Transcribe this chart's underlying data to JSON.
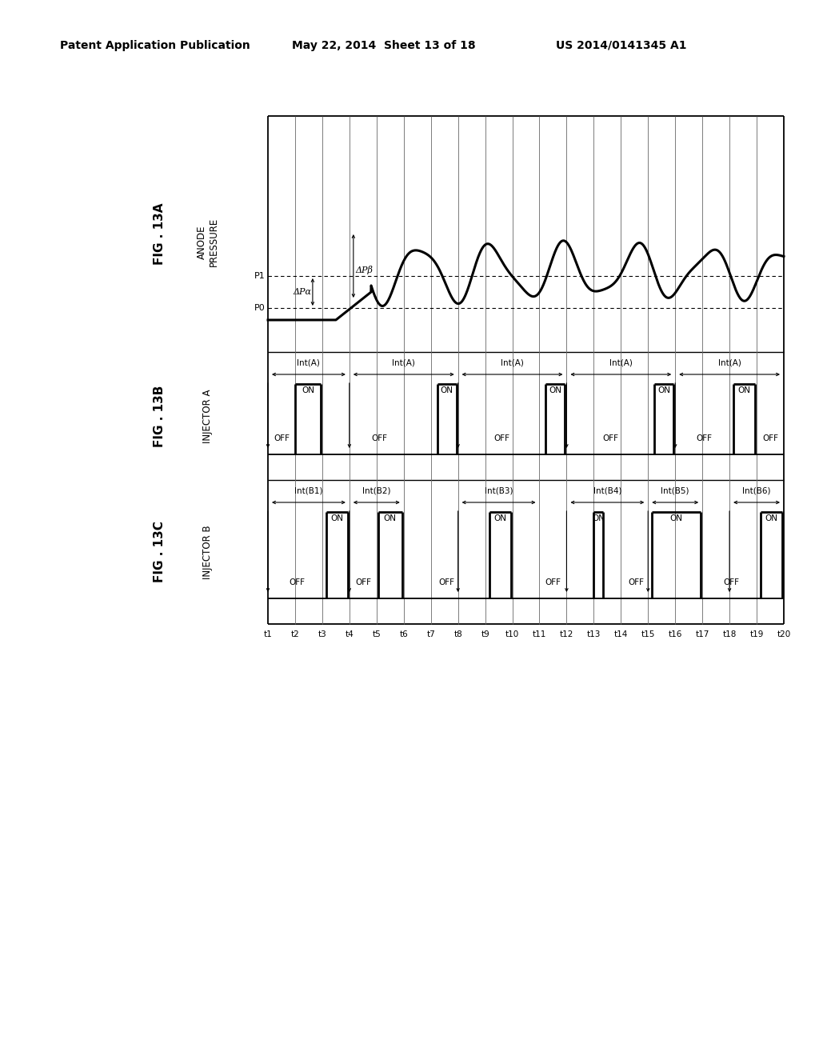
{
  "header_left": "Patent Application Publication",
  "header_mid": "May 22, 2014  Sheet 13 of 18",
  "header_right": "US 2014/0141345 A1",
  "time_labels": [
    "t1",
    "t2",
    "t3",
    "t4",
    "t5",
    "t6",
    "t7",
    "t8",
    "t9",
    "t10",
    "t11",
    "t12",
    "t13",
    "t14",
    "t15",
    "t16",
    "t17",
    "t18",
    "t19",
    "t20"
  ],
  "bg_color": "#ffffff"
}
